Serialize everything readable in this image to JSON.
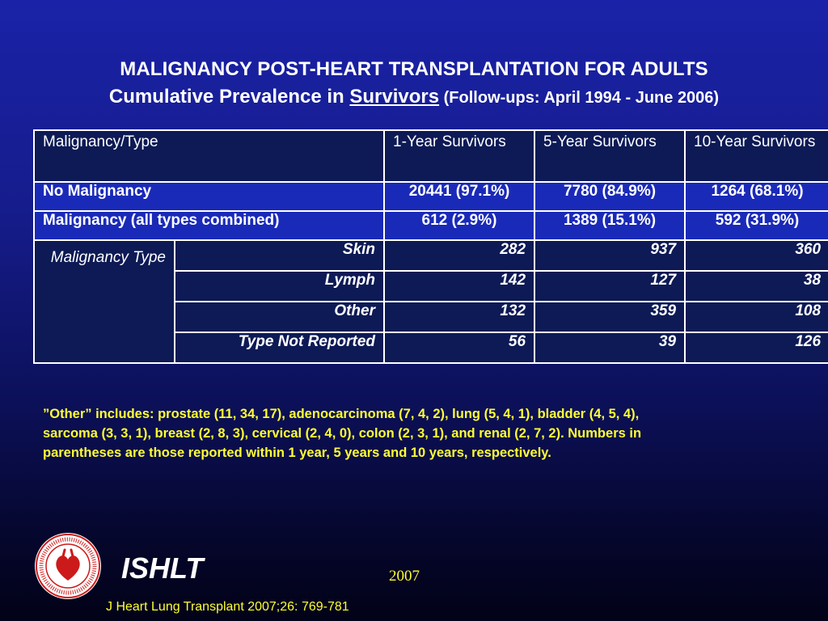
{
  "title": {
    "line1": "MALIGNANCY POST-HEART TRANSPLANTATION  FOR ADULTS",
    "line2_prefix": "Cumulative Prevalence in ",
    "line2_underlined": "Survivors",
    "line2_suffix": " (Follow-ups: April 1994 - June 2006)"
  },
  "table": {
    "headers": [
      "Malignancy/Type",
      "1-Year Survivors",
      "5-Year Survivors",
      "10-Year Survivors"
    ],
    "main_rows": [
      {
        "label": "No Malignancy",
        "values": [
          "20441 (97.1%)",
          "7780 (84.9%)",
          "1264 (68.1%)"
        ]
      },
      {
        "label": "Malignancy (all types combined)",
        "values": [
          "612 (2.9%)",
          "1389 (15.1%)",
          "592 (31.9%)"
        ]
      }
    ],
    "group_label": "Malignancy Type",
    "sub_rows": [
      {
        "label": "Skin",
        "values": [
          "282",
          "937",
          "360"
        ]
      },
      {
        "label": "Lymph",
        "values": [
          "142",
          "127",
          "38"
        ]
      },
      {
        "label": "Other",
        "values": [
          "132",
          "359",
          "108"
        ]
      },
      {
        "label": "Type Not Reported",
        "values": [
          "56",
          "39",
          "126"
        ]
      }
    ]
  },
  "footnote": "”Other” includes: prostate (11, 34, 17), adenocarcinoma (7, 4, 2),  lung (5, 4, 1), bladder (4, 5, 4), sarcoma (3, 3, 1), breast (2, 8, 3), cervical (2, 4, 0), colon (2, 3, 1), and renal (2, 7, 2).  Numbers in parentheses are those reported within 1 year, 5 years and 10 years, respectively.",
  "footer": {
    "org": "ISHLT",
    "year": "2007",
    "citation": "J Heart Lung Transplant 2007;26: 769-781",
    "logo_text": "INTERNATIONAL SOCIETY FOR HEART & LUNG TRANSPLANTATION"
  },
  "colors": {
    "background_top": "#1a22a8",
    "background_bottom": "#020218",
    "header_cell": "#0d1a55",
    "highlight_row": "#1a2ab8",
    "footnote_text": "#ffff33",
    "logo_red": "#cc1a1a"
  }
}
